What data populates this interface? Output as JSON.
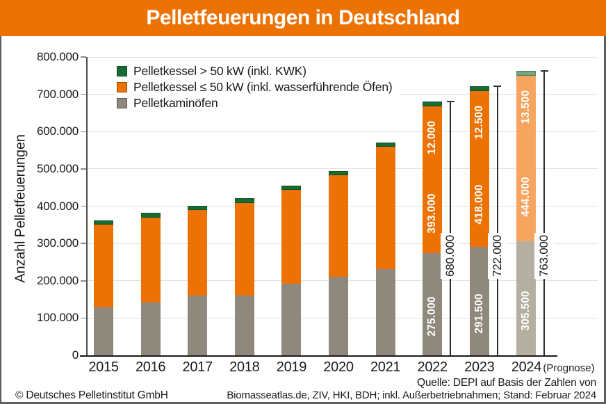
{
  "title": "Pelletfeuerungen in Deutschland",
  "colors": {
    "banner": "#ed7204",
    "text": "#1a1a1a",
    "grid": "#e0e0e0",
    "axis": "#1a1a1a"
  },
  "footer": {
    "copyright": "© Deutsches Pelletinstitut GmbH",
    "source_line1": "Quelle: DEPI auf Basis der Zahlen von",
    "source_line2": "Biomasseatlas.de, ZIV, HKI, BDH; inkl. Außerbetriebnahmen; Stand: Februar 2024"
  },
  "chart_data": {
    "type": "bar",
    "stacked": true,
    "title": "Pelletfeuerungen in Deutschland",
    "ylabel": "Anzahl Pelletfeuerungen",
    "ylim": [
      0,
      800000
    ],
    "ytick_step": 100000,
    "ytick_labels": [
      "0",
      "100.000",
      "200.000",
      "300.000",
      "400.000",
      "500.000",
      "600.000",
      "700.000",
      "800.000"
    ],
    "grid": true,
    "legend_position": "top-left-inside",
    "legend": [
      {
        "label": "Pelletkessel > 50 kW (inkl. KWK)",
        "color": "#166c33"
      },
      {
        "label": "Pelletkessel ≤ 50 kW (inkl. wasserführende Öfen)",
        "color": "#ed7204"
      },
      {
        "label": "Pelletkaminöfen",
        "color": "#8e897c"
      }
    ],
    "colors": {
      "bar": {
        "pelletkaminoefen": "#8e897c",
        "pelletkessel_le_50kw": "#ed7204",
        "pelletkessel_gt_50kw": "#166c33"
      },
      "bar_prognose": {
        "pelletkaminoefen": "#b5afa2",
        "pelletkessel_le_50kw": "#f6a55f",
        "pelletkessel_gt_50kw": "#74a77e"
      }
    },
    "categories": [
      "2015",
      "2016",
      "2017",
      "2018",
      "2019",
      "2020",
      "2021",
      "2022",
      "2023",
      "2024"
    ],
    "bars": [
      {
        "year": "2015",
        "pelletkaminoefen": 128000,
        "pelletkessel_le_50kw": 223000,
        "pelletkessel_gt_50kw": 11000,
        "total": 362000
      },
      {
        "year": "2016",
        "pelletkaminoefen": 142000,
        "pelletkessel_le_50kw": 228000,
        "pelletkessel_gt_50kw": 11500,
        "total": 381500
      },
      {
        "year": "2017",
        "pelletkaminoefen": 160000,
        "pelletkessel_le_50kw": 229000,
        "pelletkessel_gt_50kw": 12000,
        "total": 401000
      },
      {
        "year": "2018",
        "pelletkaminoefen": 160000,
        "pelletkessel_le_50kw": 249000,
        "pelletkessel_gt_50kw": 12500,
        "total": 421500
      },
      {
        "year": "2019",
        "pelletkaminoefen": 192000,
        "pelletkessel_le_50kw": 251000,
        "pelletkessel_gt_50kw": 12000,
        "total": 455000
      },
      {
        "year": "2020",
        "pelletkaminoefen": 210000,
        "pelletkessel_le_50kw": 273000,
        "pelletkessel_gt_50kw": 12000,
        "total": 495000
      },
      {
        "year": "2021",
        "pelletkaminoefen": 232000,
        "pelletkessel_le_50kw": 327000,
        "pelletkessel_gt_50kw": 11500,
        "total": 570500
      },
      {
        "year": "2022",
        "pelletkaminoefen": 275000,
        "pelletkessel_le_50kw": 393000,
        "pelletkessel_gt_50kw": 12000,
        "total": 680000,
        "labels": {
          "pelletkaminoefen": "275.000",
          "pelletkessel_le_50kw": "393.000",
          "pelletkessel_gt_50kw": "12.000"
        },
        "total_label": "680.000"
      },
      {
        "year": "2023",
        "pelletkaminoefen": 291500,
        "pelletkessel_le_50kw": 418000,
        "pelletkessel_gt_50kw": 12500,
        "total": 722000,
        "labels": {
          "pelletkaminoefen": "291.500",
          "pelletkessel_le_50kw": "418.000",
          "pelletkessel_gt_50kw": "12.500"
        },
        "total_label": "722.000"
      },
      {
        "year": "2024",
        "prognose": true,
        "suffix": "(Prognose)",
        "pelletkaminoefen": 305500,
        "pelletkessel_le_50kw": 444000,
        "pelletkessel_gt_50kw": 13500,
        "total": 763000,
        "labels": {
          "pelletkaminoefen": "305.500",
          "pelletkessel_le_50kw": "444.000",
          "pelletkessel_gt_50kw": "13.500"
        },
        "total_label": "763.000"
      }
    ]
  }
}
